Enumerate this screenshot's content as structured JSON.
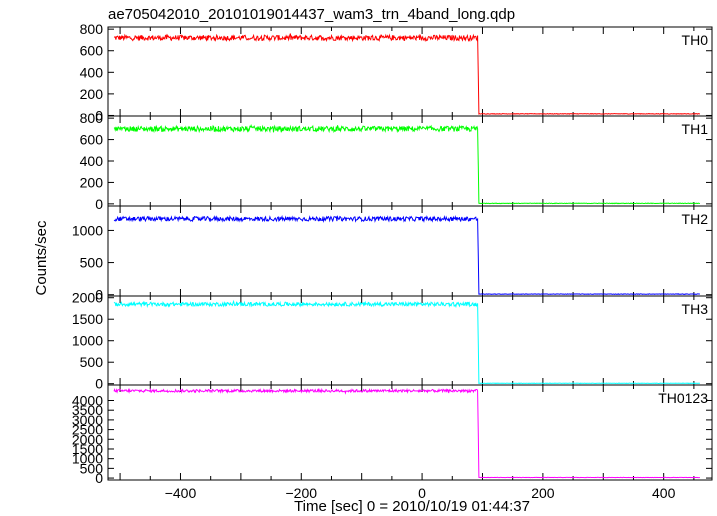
{
  "chart_data": {
    "type": "line",
    "title": "ae705042010_20101019014437_wam3_trn_4band_long.qdp",
    "xlabel": "Time [sec] 0 = 2010/10/19 01:44:37",
    "ylabel": "Counts/sec",
    "xlim": [
      -520,
      480
    ],
    "x_ticks": [
      -400,
      -200,
      0,
      200,
      400
    ],
    "x_tick_labels": [
      "−400",
      "−200",
      "0",
      "200",
      "400"
    ],
    "data_x_range": [
      -510,
      460
    ],
    "drop_time": 93,
    "panels": [
      {
        "name": "TH0",
        "color": "#ff0000",
        "ylim": [
          -5,
          820
        ],
        "y_ticks": [
          0,
          200,
          400,
          600,
          800
        ],
        "y_tick_labels": [
          "0",
          "200",
          "400",
          "600",
          "800"
        ],
        "level_before": 720,
        "noise": 25,
        "level_after": 15
      },
      {
        "name": "TH1",
        "color": "#00ff00",
        "ylim": [
          -20,
          820
        ],
        "y_ticks": [
          0,
          200,
          400,
          600,
          800
        ],
        "y_tick_labels": [
          "0",
          "200",
          "400",
          "600",
          "800"
        ],
        "level_before": 700,
        "noise": 25,
        "level_after": 5
      },
      {
        "name": "TH2",
        "color": "#0000ff",
        "ylim": [
          -20,
          1380
        ],
        "y_ticks": [
          0,
          500,
          1000
        ],
        "y_tick_labels": [
          "0",
          "500",
          "1000"
        ],
        "level_before": 1180,
        "noise": 35,
        "level_after": 10
      },
      {
        "name": "TH3",
        "color": "#00ffff",
        "ylim": [
          -30,
          2040
        ],
        "y_ticks": [
          0,
          500,
          1000,
          1500,
          2000
        ],
        "y_tick_labels": [
          "0",
          "500",
          "1000",
          "1500",
          "2000"
        ],
        "level_before": 1850,
        "noise": 45,
        "level_after": 10
      },
      {
        "name": "TH0123",
        "color": "#ff00ff",
        "ylim": [
          -100,
          4800
        ],
        "y_ticks": [
          0,
          500,
          1000,
          1500,
          2000,
          2500,
          3000,
          3500,
          4000
        ],
        "y_tick_labels": [
          "0",
          "500",
          "1000",
          "1500",
          "2000",
          "2500",
          "3000",
          "3500",
          "4000"
        ],
        "level_before": 4500,
        "noise": 70,
        "level_after": 30
      }
    ]
  }
}
